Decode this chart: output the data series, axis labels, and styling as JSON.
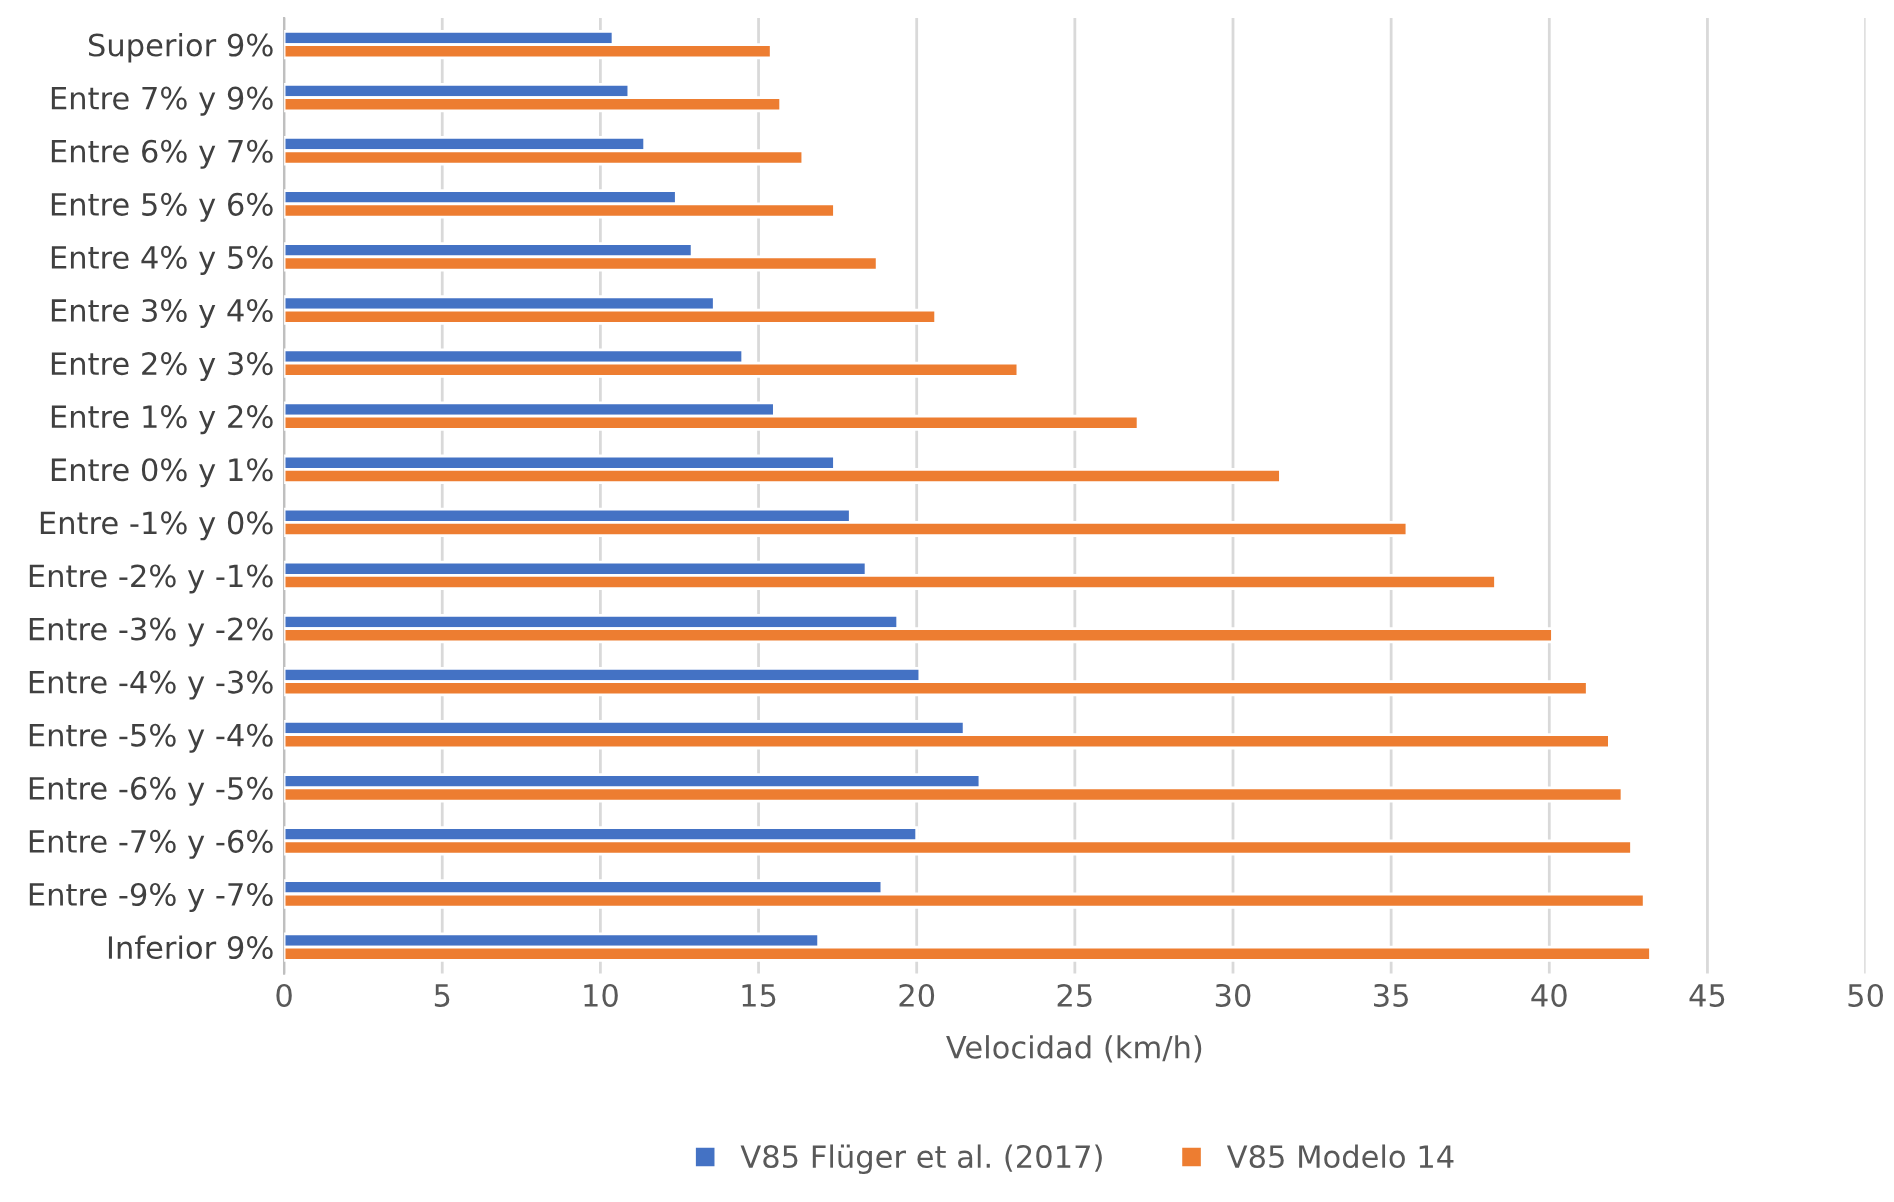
{
  "chart_data": {
    "type": "bar",
    "orientation": "horizontal",
    "xlabel": "Velocidad (km/h)",
    "categories": [
      "Superior 9%",
      "Entre 7% y 9%",
      "Entre 6% y 7%",
      "Entre 5% y 6%",
      "Entre 4% y 5%",
      "Entre 3% y 4%",
      "Entre 2% y 3%",
      "Entre 1% y 2%",
      "Entre 0% y 1%",
      "Entre -1% y 0%",
      "Entre -2% y -1%",
      "Entre -3% y -2%",
      "Entre -4% y -3%",
      "Entre -5% y -4%",
      "Entre -6% y -5%",
      "Entre -7% y -6%",
      "Entre -9% y -7%",
      "Inferior 9%"
    ],
    "series": [
      {
        "name": "V85 Flüger et al. (2017)",
        "color": "#4472c4",
        "values": [
          10.4,
          10.9,
          11.4,
          12.4,
          12.9,
          13.6,
          14.5,
          15.5,
          17.4,
          17.9,
          18.4,
          19.4,
          20.1,
          21.5,
          22.0,
          20.0,
          18.9,
          16.9
        ]
      },
      {
        "name": "V85 Modelo 14",
        "color": "#ed7d31",
        "values": [
          15.4,
          15.7,
          16.4,
          17.4,
          18.75,
          20.6,
          23.2,
          27.0,
          31.5,
          35.5,
          38.3,
          40.1,
          41.2,
          41.9,
          42.3,
          42.6,
          43.0,
          43.2
        ]
      }
    ],
    "xlim": [
      0,
      50
    ],
    "xticks": [
      0,
      5,
      10,
      15,
      20,
      25,
      30,
      35,
      40,
      45,
      50
    ],
    "grid": "x",
    "legend": "bottom"
  }
}
